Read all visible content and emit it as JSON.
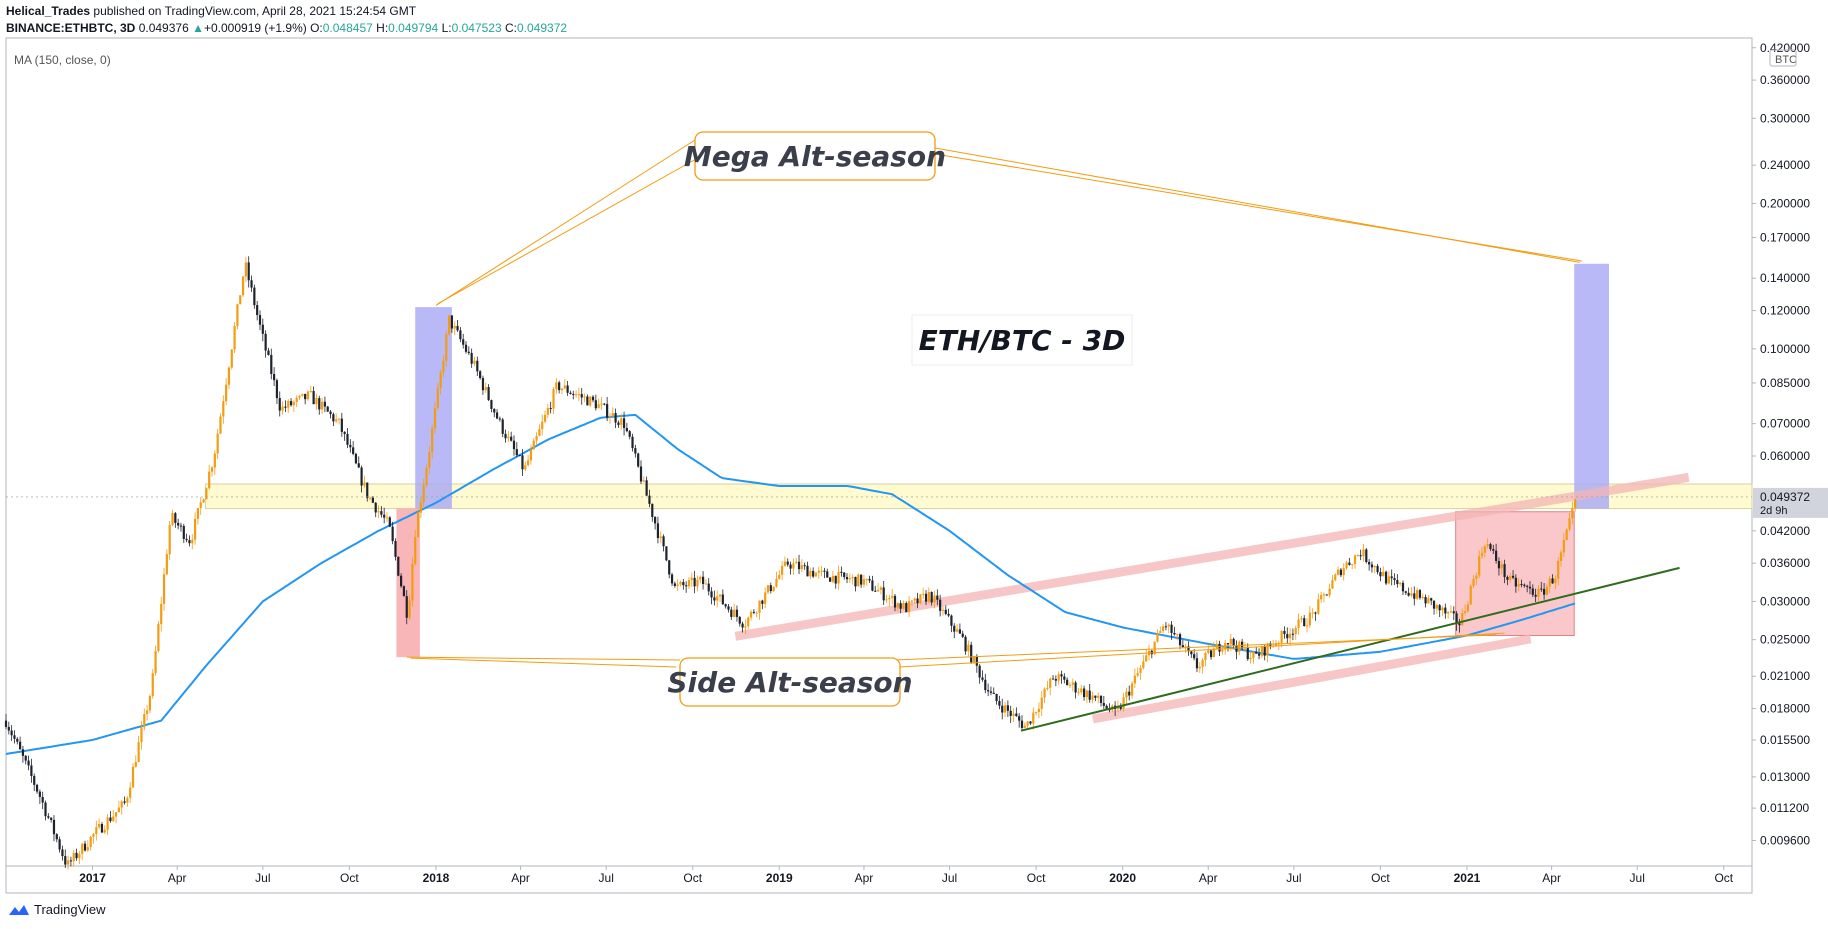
{
  "header": {
    "author": "Helical_Trades",
    "published_text": "published on TradingView.com, April 28, 2021 15:24:54 GMT",
    "symbol": "BINANCE:ETHBTC, 3D",
    "last": "0.049376",
    "change": "+0.000919 (+1.9%)",
    "o_label": "O:",
    "o": "0.048457",
    "h_label": "H:",
    "h": "0.049794",
    "l_label": "L:",
    "l": "0.047523",
    "c_label": "C:",
    "c": "0.049372"
  },
  "indicator_label": "MA (150, close, 0)",
  "footer": {
    "brand": "TradingView"
  },
  "colors": {
    "up": "#f39c12",
    "down": "#1e222d",
    "ma": "#2196f3",
    "accent": "#26a69a",
    "zone_yellow": "#fff9c4",
    "box_blue": "#a7a7f5",
    "box_red": "#f7a4a6",
    "trend_green": "#2e6b1f",
    "channel_pink": "#f4b4b4",
    "callout_orange": "#f39c12"
  },
  "chart_data": {
    "type": "candlestick",
    "title": "ETH/BTC - 3D",
    "currency": "BTC",
    "y_scale": "log",
    "ylim": [
      0.0085,
      0.44
    ],
    "xlim": [
      "2016-10-01",
      "2021-10-31"
    ],
    "grid": false,
    "legend": "none",
    "y_ticks": [
      "0.420000",
      "0.360000",
      "0.300000",
      "0.240000",
      "0.200000",
      "0.170000",
      "0.140000",
      "0.120000",
      "0.100000",
      "0.085000",
      "0.070000",
      "0.060000",
      "0.042000",
      "0.036000",
      "0.030000",
      "0.025000",
      "0.021000",
      "0.018000",
      "0.015500",
      "0.013000",
      "0.011200",
      "0.009600"
    ],
    "x_ticks": [
      {
        "label": "2017",
        "date": "2017-01-01",
        "bold": true
      },
      {
        "label": "Apr",
        "date": "2017-04-01"
      },
      {
        "label": "Jul",
        "date": "2017-07-01"
      },
      {
        "label": "Oct",
        "date": "2017-10-01"
      },
      {
        "label": "2018",
        "date": "2018-01-01",
        "bold": true
      },
      {
        "label": "Apr",
        "date": "2018-04-01"
      },
      {
        "label": "Jul",
        "date": "2018-07-01"
      },
      {
        "label": "Oct",
        "date": "2018-10-01"
      },
      {
        "label": "2019",
        "date": "2019-01-01",
        "bold": true
      },
      {
        "label": "Apr",
        "date": "2019-04-01"
      },
      {
        "label": "Jul",
        "date": "2019-07-01"
      },
      {
        "label": "Oct",
        "date": "2019-10-01"
      },
      {
        "label": "2020",
        "date": "2020-01-01",
        "bold": true
      },
      {
        "label": "Apr",
        "date": "2020-04-01"
      },
      {
        "label": "Jul",
        "date": "2020-07-01"
      },
      {
        "label": "Oct",
        "date": "2020-10-01"
      },
      {
        "label": "2021",
        "date": "2021-01-01",
        "bold": true
      },
      {
        "label": "Apr",
        "date": "2021-04-01"
      },
      {
        "label": "Jul",
        "date": "2021-07-01"
      },
      {
        "label": "Oct",
        "date": "2021-10-01"
      }
    ],
    "price_keypoints": [
      [
        "2016-10-01",
        0.017
      ],
      [
        "2016-11-05",
        0.012
      ],
      [
        "2016-12-05",
        0.0085
      ],
      [
        "2017-01-05",
        0.01
      ],
      [
        "2017-02-05",
        0.0115
      ],
      [
        "2017-03-05",
        0.02
      ],
      [
        "2017-03-25",
        0.045
      ],
      [
        "2017-04-15",
        0.04
      ],
      [
        "2017-05-10",
        0.06
      ],
      [
        "2017-06-12",
        0.15
      ],
      [
        "2017-07-01",
        0.105
      ],
      [
        "2017-07-20",
        0.075
      ],
      [
        "2017-08-20",
        0.08
      ],
      [
        "2017-09-20",
        0.07
      ],
      [
        "2017-10-20",
        0.05
      ],
      [
        "2017-11-12",
        0.043
      ],
      [
        "2017-12-02",
        0.028
      ],
      [
        "2017-12-10",
        0.042
      ],
      [
        "2017-12-25",
        0.062
      ],
      [
        "2018-01-15",
        0.115
      ],
      [
        "2018-02-10",
        0.093
      ],
      [
        "2018-03-10",
        0.07
      ],
      [
        "2018-04-05",
        0.056
      ],
      [
        "2018-05-10",
        0.084
      ],
      [
        "2018-06-20",
        0.077
      ],
      [
        "2018-07-20",
        0.07
      ],
      [
        "2018-08-20",
        0.045
      ],
      [
        "2018-09-12",
        0.032
      ],
      [
        "2018-10-10",
        0.033
      ],
      [
        "2018-11-25",
        0.027
      ],
      [
        "2019-01-10",
        0.036
      ],
      [
        "2019-02-15",
        0.034
      ],
      [
        "2019-04-01",
        0.033
      ],
      [
        "2019-05-15",
        0.029
      ],
      [
        "2019-06-10",
        0.031
      ],
      [
        "2019-07-15",
        0.025
      ],
      [
        "2019-08-15",
        0.019
      ],
      [
        "2019-09-20",
        0.0165
      ],
      [
        "2019-10-20",
        0.021
      ],
      [
        "2019-12-01",
        0.019
      ],
      [
        "2019-12-25",
        0.0175
      ],
      [
        "2020-02-15",
        0.027
      ],
      [
        "2020-03-20",
        0.022
      ],
      [
        "2020-04-20",
        0.025
      ],
      [
        "2020-05-20",
        0.023
      ],
      [
        "2020-06-20",
        0.0255
      ],
      [
        "2020-07-20",
        0.028
      ],
      [
        "2020-08-20",
        0.035
      ],
      [
        "2020-09-10",
        0.038
      ],
      [
        "2020-10-10",
        0.033
      ],
      [
        "2020-11-20",
        0.03
      ],
      [
        "2020-12-25",
        0.027
      ],
      [
        "2021-01-20",
        0.04
      ],
      [
        "2021-02-15",
        0.033
      ],
      [
        "2021-03-20",
        0.031
      ],
      [
        "2021-04-05",
        0.034
      ],
      [
        "2021-04-28",
        0.0494
      ]
    ],
    "ma150_keypoints": [
      [
        "2016-10-01",
        0.0145
      ],
      [
        "2017-01-01",
        0.0155
      ],
      [
        "2017-03-15",
        0.017
      ],
      [
        "2017-05-01",
        0.022
      ],
      [
        "2017-07-01",
        0.03
      ],
      [
        "2017-09-01",
        0.036
      ],
      [
        "2017-11-01",
        0.042
      ],
      [
        "2018-01-01",
        0.048
      ],
      [
        "2018-03-01",
        0.056
      ],
      [
        "2018-05-01",
        0.065
      ],
      [
        "2018-06-25",
        0.072
      ],
      [
        "2018-08-01",
        0.073
      ],
      [
        "2018-09-15",
        0.062
      ],
      [
        "2018-11-01",
        0.054
      ],
      [
        "2019-01-01",
        0.052
      ],
      [
        "2019-03-15",
        0.052
      ],
      [
        "2019-05-01",
        0.05
      ],
      [
        "2019-07-01",
        0.042
      ],
      [
        "2019-09-01",
        0.034
      ],
      [
        "2019-11-01",
        0.0285
      ],
      [
        "2020-01-01",
        0.0265
      ],
      [
        "2020-04-01",
        0.0245
      ],
      [
        "2020-07-01",
        0.0228
      ],
      [
        "2020-10-01",
        0.0236
      ],
      [
        "2021-01-01",
        0.0255
      ],
      [
        "2021-03-01",
        0.0275
      ],
      [
        "2021-04-28",
        0.0298
      ]
    ],
    "last_price_tag": {
      "value": "0.049372",
      "countdown": "2d 9h"
    },
    "annotations": [
      {
        "text": "Mega Alt-season"
      },
      {
        "text": "Side Alt-season"
      }
    ]
  }
}
